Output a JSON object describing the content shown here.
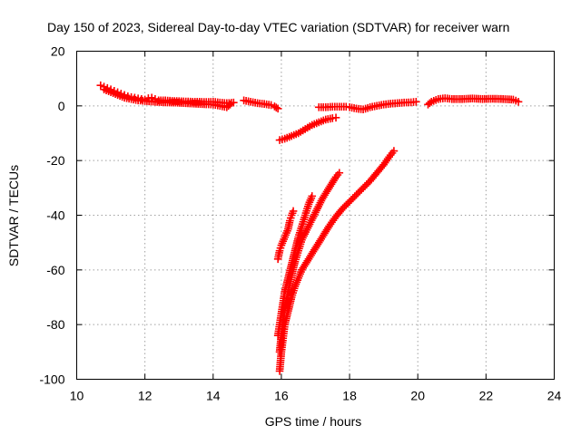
{
  "chart_data": {
    "type": "scatter",
    "title": "Day 150 of 2023, Sidereal Day-to-day VTEC variation (SDTVAR) for receiver warn",
    "xlabel": "GPS time / hours",
    "ylabel": "SDTVAR / TECUs",
    "xlim": [
      10,
      24
    ],
    "ylim": [
      -100,
      20
    ],
    "xticks": [
      10,
      12,
      14,
      16,
      18,
      20,
      22,
      24
    ],
    "yticks": [
      -100,
      -80,
      -60,
      -40,
      -20,
      0,
      20
    ],
    "grid": true,
    "marker": "plus",
    "color": "#ff0000",
    "series": [
      {
        "points": [
          [
            10.7,
            7.5
          ],
          [
            10.8,
            7.0
          ],
          [
            10.9,
            6.5
          ],
          [
            11.0,
            6.0
          ],
          [
            11.1,
            5.5
          ],
          [
            11.2,
            5.0
          ],
          [
            11.3,
            4.5
          ],
          [
            11.4,
            4.0
          ],
          [
            11.5,
            3.5
          ],
          [
            11.6,
            3.2
          ],
          [
            11.7,
            3.0
          ],
          [
            11.8,
            2.7
          ],
          [
            11.9,
            2.5
          ],
          [
            12.0,
            2.3
          ],
          [
            12.1,
            2.8
          ],
          [
            12.2,
            3.0
          ],
          [
            12.3,
            2.5
          ],
          [
            12.4,
            2.0
          ],
          [
            12.6,
            2.0
          ],
          [
            12.8,
            1.8
          ],
          [
            13.0,
            1.7
          ],
          [
            13.2,
            1.6
          ],
          [
            13.4,
            1.5
          ],
          [
            13.6,
            1.5
          ],
          [
            13.8,
            1.4
          ],
          [
            14.0,
            1.5
          ],
          [
            14.2,
            1.2
          ],
          [
            14.4,
            1.0
          ],
          [
            14.6,
            1.2
          ]
        ]
      },
      {
        "points": [
          [
            10.8,
            6.0
          ],
          [
            11.0,
            5.0
          ],
          [
            11.2,
            4.0
          ],
          [
            11.4,
            3.0
          ],
          [
            11.6,
            2.5
          ],
          [
            11.8,
            2.0
          ],
          [
            12.0,
            1.8
          ],
          [
            12.3,
            1.5
          ],
          [
            12.6,
            1.3
          ],
          [
            12.9,
            1.2
          ],
          [
            13.2,
            1.0
          ],
          [
            13.5,
            0.8
          ],
          [
            13.8,
            0.6
          ],
          [
            14.0,
            0.5
          ],
          [
            14.2,
            0.0
          ],
          [
            14.4,
            -0.5
          ],
          [
            14.5,
            0.5
          ]
        ]
      },
      {
        "points": [
          [
            14.9,
            2.0
          ],
          [
            15.1,
            1.5
          ],
          [
            15.3,
            1.0
          ],
          [
            15.5,
            0.7
          ],
          [
            15.7,
            0.3
          ],
          [
            15.8,
            -0.2
          ],
          [
            15.9,
            -1.0
          ]
        ]
      },
      {
        "points": [
          [
            15.95,
            -12.5
          ],
          [
            16.1,
            -12.0
          ],
          [
            16.3,
            -11.0
          ],
          [
            16.5,
            -10.0
          ],
          [
            16.7,
            -8.5
          ],
          [
            16.9,
            -7.0
          ],
          [
            17.1,
            -6.0
          ],
          [
            17.3,
            -5.0
          ],
          [
            17.5,
            -4.5
          ],
          [
            17.6,
            -4.3
          ]
        ]
      },
      {
        "points": [
          [
            17.1,
            -0.5
          ],
          [
            17.3,
            -0.5
          ],
          [
            17.5,
            -0.3
          ],
          [
            17.7,
            -0.3
          ],
          [
            17.9,
            -0.3
          ],
          [
            18.0,
            -0.5
          ],
          [
            18.2,
            -1.0
          ],
          [
            18.4,
            -1.3
          ],
          [
            18.6,
            -0.5
          ],
          [
            18.8,
            0.0
          ],
          [
            19.0,
            0.5
          ],
          [
            19.2,
            0.8
          ],
          [
            19.4,
            1.0
          ],
          [
            19.6,
            1.2
          ],
          [
            19.8,
            1.3
          ],
          [
            19.95,
            1.5
          ]
        ]
      },
      {
        "points": [
          [
            20.3,
            0.5
          ],
          [
            20.4,
            1.5
          ],
          [
            20.6,
            2.5
          ],
          [
            20.8,
            2.8
          ],
          [
            21.0,
            2.5
          ],
          [
            21.3,
            2.5
          ],
          [
            21.6,
            2.7
          ],
          [
            21.9,
            2.5
          ],
          [
            22.2,
            2.6
          ],
          [
            22.5,
            2.5
          ],
          [
            22.8,
            2.3
          ],
          [
            22.95,
            1.5
          ]
        ]
      },
      {
        "points": [
          [
            15.9,
            -56.0
          ],
          [
            15.95,
            -53.0
          ],
          [
            16.0,
            -51.0
          ],
          [
            16.1,
            -48.0
          ],
          [
            16.2,
            -45.0
          ],
          [
            16.25,
            -42.0
          ],
          [
            16.3,
            -40.0
          ],
          [
            16.35,
            -38.5
          ]
        ]
      },
      {
        "points": [
          [
            15.9,
            -84.0
          ],
          [
            15.95,
            -80.0
          ],
          [
            16.0,
            -76.0
          ],
          [
            16.05,
            -72.0
          ],
          [
            16.1,
            -68.0
          ],
          [
            16.2,
            -63.0
          ],
          [
            16.3,
            -58.0
          ],
          [
            16.4,
            -53.0
          ],
          [
            16.5,
            -48.0
          ],
          [
            16.6,
            -44.0
          ],
          [
            16.7,
            -40.0
          ],
          [
            16.8,
            -36.0
          ],
          [
            16.9,
            -33.0
          ]
        ]
      },
      {
        "points": [
          [
            15.95,
            -90.0
          ],
          [
            16.0,
            -84.0
          ],
          [
            16.05,
            -79.0
          ],
          [
            16.1,
            -74.0
          ],
          [
            16.2,
            -68.0
          ],
          [
            16.3,
            -62.0
          ],
          [
            16.4,
            -57.0
          ],
          [
            16.5,
            -53.0
          ],
          [
            16.6,
            -49.0
          ],
          [
            16.8,
            -44.0
          ],
          [
            17.0,
            -39.0
          ],
          [
            17.2,
            -34.0
          ],
          [
            17.4,
            -30.0
          ],
          [
            17.6,
            -26.0
          ],
          [
            17.7,
            -24.5
          ]
        ]
      },
      {
        "points": [
          [
            15.95,
            -97.0
          ],
          [
            16.0,
            -90.0
          ],
          [
            16.05,
            -85.0
          ],
          [
            16.1,
            -80.0
          ],
          [
            16.2,
            -75.0
          ],
          [
            16.3,
            -70.0
          ],
          [
            16.4,
            -66.0
          ],
          [
            16.5,
            -63.0
          ],
          [
            16.6,
            -60.0
          ],
          [
            16.8,
            -56.0
          ],
          [
            17.0,
            -52.0
          ],
          [
            17.2,
            -48.0
          ],
          [
            17.4,
            -44.0
          ],
          [
            17.6,
            -40.5
          ],
          [
            17.8,
            -37.5
          ],
          [
            18.0,
            -35.0
          ],
          [
            18.2,
            -32.5
          ],
          [
            18.4,
            -30.0
          ],
          [
            18.6,
            -27.5
          ],
          [
            18.8,
            -24.5
          ],
          [
            19.0,
            -21.5
          ],
          [
            19.2,
            -18.0
          ],
          [
            19.3,
            -16.5
          ]
        ]
      }
    ]
  }
}
